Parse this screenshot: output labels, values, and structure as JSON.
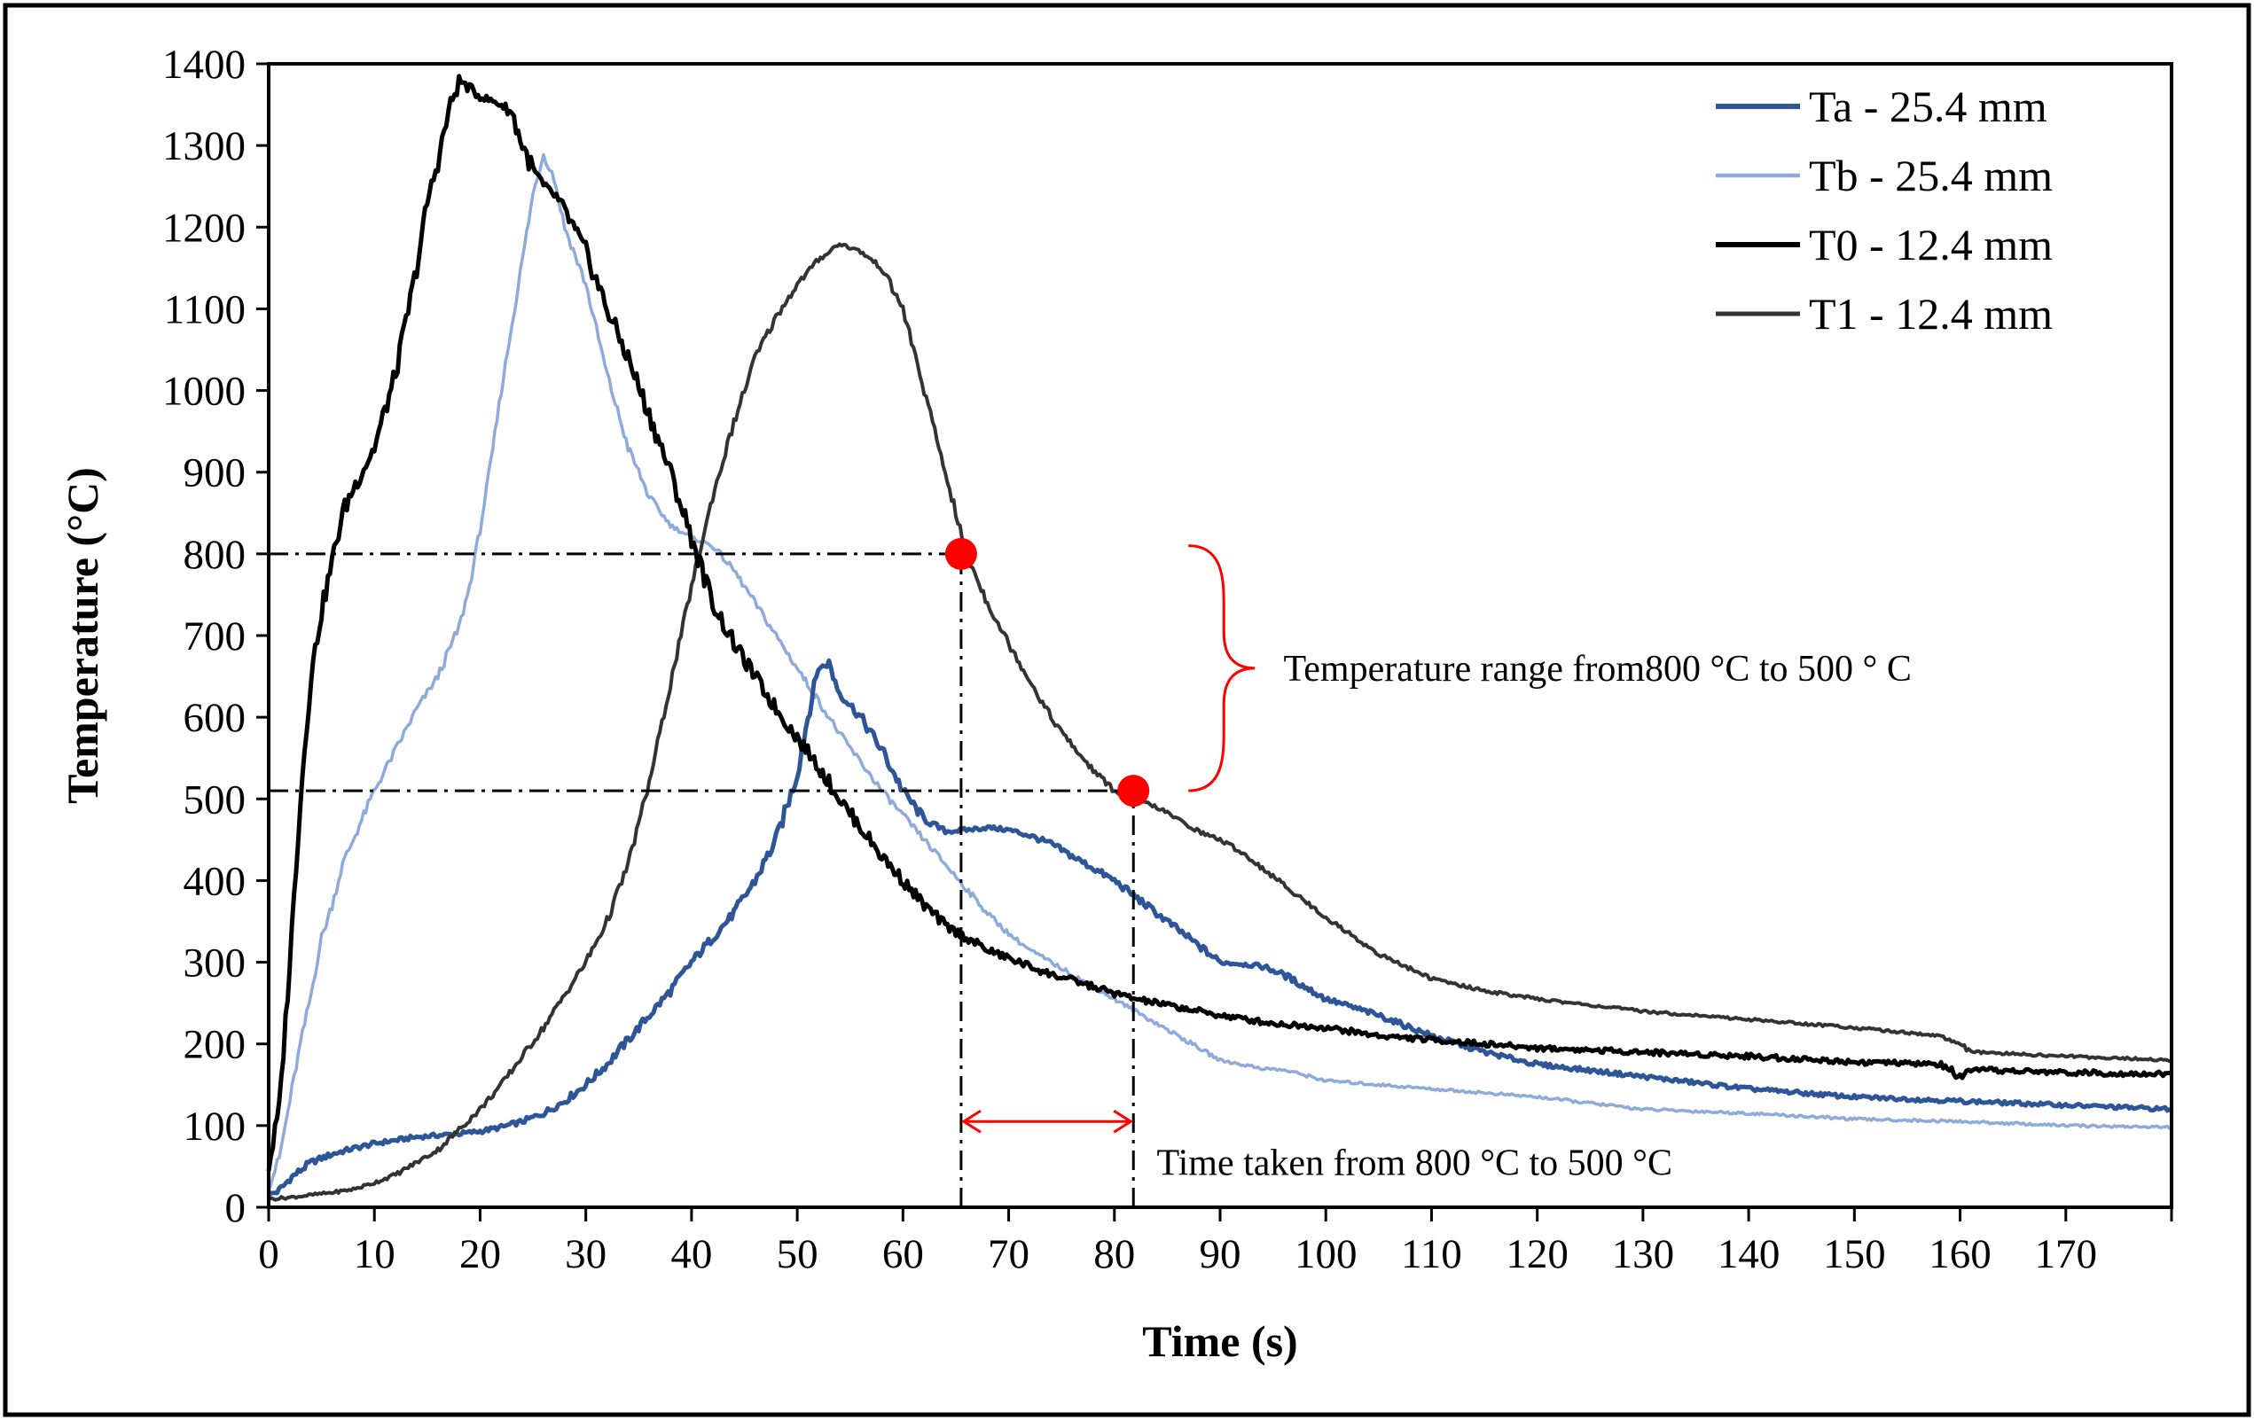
{
  "chart_data": {
    "type": "line",
    "title": "",
    "xlabel": "Time (s)",
    "ylabel": "Temperature (°C)",
    "xlim": [
      0,
      180
    ],
    "ylim": [
      0,
      1400
    ],
    "xticks": [
      0,
      10,
      20,
      30,
      40,
      50,
      60,
      70,
      80,
      90,
      100,
      110,
      120,
      130,
      140,
      150,
      160,
      170
    ],
    "yticks": [
      0,
      100,
      200,
      300,
      400,
      500,
      600,
      700,
      800,
      900,
      1000,
      1100,
      1200,
      1300,
      1400
    ],
    "grid": false,
    "legend_position": "top-right",
    "series": [
      {
        "name": "Ta - 25.4 mm",
        "color": "#2e5597",
        "x": [
          0,
          1,
          2,
          4,
          6,
          8,
          10,
          12,
          14,
          16,
          18,
          20,
          22,
          24,
          26,
          28,
          30,
          32,
          34,
          36,
          38,
          40,
          42,
          44,
          46,
          48,
          50,
          51,
          52,
          53,
          54,
          56,
          58,
          60,
          62,
          64,
          66,
          68,
          70,
          72,
          74,
          76,
          78,
          80,
          82,
          84,
          86,
          88,
          90,
          92,
          94,
          96,
          98,
          100,
          105,
          110,
          115,
          120,
          130,
          140,
          150,
          160,
          170,
          180
        ],
        "y": [
          15,
          20,
          35,
          55,
          65,
          72,
          78,
          82,
          86,
          88,
          90,
          93,
          98,
          105,
          115,
          130,
          150,
          175,
          205,
          235,
          265,
          300,
          330,
          360,
          400,
          450,
          530,
          600,
          660,
          665,
          630,
          600,
          560,
          510,
          475,
          460,
          462,
          465,
          462,
          455,
          445,
          430,
          415,
          400,
          380,
          360,
          340,
          320,
          300,
          298,
          295,
          285,
          270,
          255,
          235,
          210,
          190,
          175,
          160,
          145,
          135,
          130,
          125,
          120
        ]
      },
      {
        "name": "Tb - 25.4 mm",
        "color": "#8eaadb",
        "x": [
          0,
          1,
          2,
          3,
          4,
          5,
          6,
          7,
          8,
          10,
          12,
          14,
          16,
          18,
          19,
          20,
          21,
          22,
          23,
          24,
          25,
          26,
          27,
          28,
          30,
          32,
          34,
          36,
          38,
          40,
          42,
          44,
          46,
          48,
          50,
          52,
          54,
          56,
          58,
          60,
          62,
          64,
          66,
          68,
          70,
          72,
          74,
          76,
          78,
          80,
          82,
          84,
          86,
          88,
          90,
          92,
          94,
          96,
          98,
          100,
          110,
          120,
          130,
          140,
          150,
          160,
          170,
          180
        ],
        "y": [
          25,
          60,
          130,
          200,
          260,
          330,
          370,
          420,
          450,
          510,
          560,
          610,
          650,
          710,
          760,
          830,
          910,
          1000,
          1080,
          1160,
          1240,
          1290,
          1260,
          1200,
          1130,
          1020,
          930,
          870,
          835,
          820,
          810,
          780,
          740,
          700,
          660,
          620,
          580,
          545,
          510,
          480,
          450,
          420,
          390,
          360,
          335,
          315,
          300,
          285,
          270,
          255,
          240,
          225,
          210,
          195,
          180,
          175,
          170,
          168,
          162,
          155,
          145,
          135,
          120,
          115,
          108,
          105,
          100,
          98
        ]
      },
      {
        "name": "T0 - 12.4 mm",
        "color": "#000000",
        "x": [
          0,
          1,
          2,
          3,
          4,
          5,
          6,
          7,
          8,
          10,
          12,
          14,
          15,
          16,
          17,
          18,
          19,
          20,
          22,
          23,
          24,
          25,
          26,
          27,
          28,
          30,
          32,
          34,
          36,
          38,
          40,
          42,
          44,
          46,
          48,
          50,
          52,
          54,
          56,
          58,
          60,
          62,
          64,
          66,
          68,
          70,
          72,
          74,
          76,
          78,
          80,
          82,
          84,
          86,
          88,
          90,
          95,
          100,
          105,
          110,
          115,
          120,
          130,
          140,
          150,
          158,
          160,
          161,
          162,
          170,
          180
        ],
        "y": [
          50,
          120,
          300,
          500,
          650,
          730,
          790,
          850,
          880,
          930,
          1020,
          1150,
          1230,
          1280,
          1340,
          1380,
          1370,
          1360,
          1350,
          1340,
          1300,
          1270,
          1250,
          1240,
          1220,
          1170,
          1100,
          1040,
          970,
          900,
          820,
          740,
          690,
          650,
          610,
          575,
          540,
          500,
          465,
          430,
          400,
          370,
          345,
          330,
          315,
          305,
          295,
          285,
          278,
          270,
          262,
          255,
          250,
          245,
          240,
          235,
          225,
          220,
          210,
          205,
          200,
          195,
          190,
          185,
          178,
          175,
          160,
          165,
          168,
          165,
          163
        ]
      },
      {
        "name": "T1 - 12.4 mm",
        "color": "#333333",
        "x": [
          0,
          2,
          4,
          6,
          8,
          10,
          12,
          14,
          16,
          18,
          20,
          22,
          24,
          26,
          28,
          30,
          32,
          34,
          36,
          38,
          40,
          42,
          44,
          46,
          48,
          50,
          52,
          54,
          56,
          58,
          60,
          62,
          64,
          66,
          68,
          70,
          72,
          74,
          76,
          78,
          80,
          82,
          84,
          86,
          88,
          90,
          92,
          94,
          96,
          98,
          100,
          105,
          110,
          115,
          120,
          130,
          140,
          150,
          158,
          160,
          161,
          170,
          180
        ],
        "y": [
          10,
          12,
          15,
          18,
          22,
          30,
          40,
          55,
          70,
          95,
          120,
          150,
          185,
          220,
          260,
          300,
          350,
          420,
          520,
          640,
          760,
          870,
          960,
          1040,
          1090,
          1130,
          1160,
          1180,
          1170,
          1150,
          1100,
          1000,
          900,
          800,
          740,
          690,
          645,
          600,
          565,
          535,
          510,
          500,
          490,
          475,
          460,
          450,
          435,
          415,
          395,
          375,
          355,
          310,
          280,
          265,
          255,
          240,
          230,
          220,
          210,
          200,
          190,
          185,
          180
        ]
      }
    ],
    "reference_lines": {
      "horizontal": [
        {
          "y": 800,
          "x_from": 0,
          "x_to": 65.5
        },
        {
          "y": 510,
          "x_from": 0,
          "x_to": 81.8
        }
      ],
      "vertical": [
        {
          "x": 65.5,
          "y_from": 0,
          "y_to": 800
        },
        {
          "x": 81.8,
          "y_from": 0,
          "y_to": 510
        }
      ]
    },
    "markers": [
      {
        "x": 65.5,
        "y": 800,
        "color": "#ff0000"
      },
      {
        "x": 81.8,
        "y": 510,
        "color": "#ff0000"
      }
    ],
    "annotations": [
      {
        "text": "Temperature range from800 °C to 500 ° C",
        "brace_y_from": 810,
        "brace_y_to": 510,
        "brace_x": 87,
        "text_x": 96,
        "text_y": 660
      },
      {
        "text": "Time taken from 800 °C to 500 °C",
        "arrow_x_from": 65.5,
        "arrow_x_to": 81.8,
        "arrow_y": 105,
        "text_x": 84,
        "text_y": 55
      }
    ]
  }
}
